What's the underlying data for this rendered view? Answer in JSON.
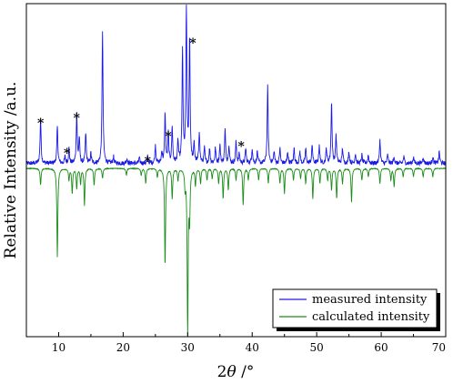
{
  "chart_data": {
    "type": "line",
    "xlabel_main": "2",
    "xlabel_var": "θ",
    "xlabel_unit": " /°",
    "ylabel": "Relative Intensity /a.u.",
    "xlim": [
      5,
      70
    ],
    "xticks": [
      10,
      20,
      30,
      40,
      50,
      60,
      70
    ],
    "xtick_labels": [
      "10",
      "20",
      "30",
      "40",
      "50",
      "60",
      "70"
    ],
    "ylim": [
      -100,
      100
    ],
    "legend_position": "bottom-right",
    "series": [
      {
        "name": "measured intensity",
        "color": "#1a1ae6",
        "baseline": 3,
        "peaks": [
          [
            7.2,
            27
          ],
          [
            9.8,
            22
          ],
          [
            11.0,
            4
          ],
          [
            11.6,
            9
          ],
          [
            12.8,
            30
          ],
          [
            13.2,
            15
          ],
          [
            14.2,
            18
          ],
          [
            15.0,
            6
          ],
          [
            16.8,
            80
          ],
          [
            18.5,
            4
          ],
          [
            20.6,
            3
          ],
          [
            22.5,
            3
          ],
          [
            23.8,
            4
          ],
          [
            25.0,
            11
          ],
          [
            26.0,
            7
          ],
          [
            26.5,
            30
          ],
          [
            27.0,
            18
          ],
          [
            27.6,
            22
          ],
          [
            28.5,
            13
          ],
          [
            29.2,
            67
          ],
          [
            29.8,
            95
          ],
          [
            30.3,
            75
          ],
          [
            31.0,
            11
          ],
          [
            31.8,
            19
          ],
          [
            32.6,
            9
          ],
          [
            33.4,
            9
          ],
          [
            34.3,
            9
          ],
          [
            35.0,
            11
          ],
          [
            35.8,
            20
          ],
          [
            36.4,
            11
          ],
          [
            37.5,
            13
          ],
          [
            38.0,
            6
          ],
          [
            39.0,
            9
          ],
          [
            40.0,
            9
          ],
          [
            40.8,
            7
          ],
          [
            42.4,
            46
          ],
          [
            43.4,
            7
          ],
          [
            44.3,
            9
          ],
          [
            45.5,
            7
          ],
          [
            46.5,
            9
          ],
          [
            47.4,
            7
          ],
          [
            48.3,
            9
          ],
          [
            49.3,
            11
          ],
          [
            50.4,
            11
          ],
          [
            51.5,
            9
          ],
          [
            52.3,
            37
          ],
          [
            53.0,
            17
          ],
          [
            54.0,
            9
          ],
          [
            55.0,
            7
          ],
          [
            56.0,
            6
          ],
          [
            57.0,
            5
          ],
          [
            58.0,
            5
          ],
          [
            59.8,
            14
          ],
          [
            61.0,
            5
          ],
          [
            62.0,
            4
          ],
          [
            63.5,
            4
          ],
          [
            65.0,
            4
          ],
          [
            66.5,
            4
          ],
          [
            68.0,
            4
          ],
          [
            69.0,
            7
          ]
        ]
      },
      {
        "name": "calculated intensity",
        "color": "#1a8c1a",
        "baseline": 0,
        "peaks": [
          [
            7.2,
            -10
          ],
          [
            9.8,
            -53
          ],
          [
            11.6,
            -7
          ],
          [
            12.1,
            -15
          ],
          [
            12.8,
            -12
          ],
          [
            13.4,
            -9
          ],
          [
            14.0,
            -22
          ],
          [
            15.5,
            -10
          ],
          [
            16.8,
            -6
          ],
          [
            20.5,
            -4
          ],
          [
            22.8,
            -4
          ],
          [
            23.5,
            -9
          ],
          [
            25.3,
            -5
          ],
          [
            26.5,
            -59
          ],
          [
            27.6,
            -18
          ],
          [
            28.5,
            -7
          ],
          [
            29.6,
            -10
          ],
          [
            30.0,
            -100
          ],
          [
            30.3,
            -28
          ],
          [
            31.2,
            -10
          ],
          [
            32.0,
            -9
          ],
          [
            33.0,
            -7
          ],
          [
            33.8,
            -6
          ],
          [
            34.8,
            -9
          ],
          [
            35.5,
            -18
          ],
          [
            36.3,
            -13
          ],
          [
            37.5,
            -7
          ],
          [
            38.6,
            -22
          ],
          [
            39.4,
            -7
          ],
          [
            41.0,
            -7
          ],
          [
            42.5,
            -9
          ],
          [
            44.3,
            -9
          ],
          [
            45.0,
            -15
          ],
          [
            46.4,
            -7
          ],
          [
            47.5,
            -6
          ],
          [
            48.3,
            -9
          ],
          [
            49.4,
            -18
          ],
          [
            50.5,
            -9
          ],
          [
            51.7,
            -7
          ],
          [
            52.3,
            -13
          ],
          [
            53.1,
            -18
          ],
          [
            54.0,
            -9
          ],
          [
            55.4,
            -20
          ],
          [
            57.0,
            -7
          ],
          [
            58.0,
            -5
          ],
          [
            59.8,
            -9
          ],
          [
            61.5,
            -7
          ],
          [
            62.0,
            -11
          ],
          [
            63.4,
            -5
          ],
          [
            65.0,
            -5
          ],
          [
            66.5,
            -5
          ],
          [
            68.0,
            -5
          ]
        ]
      }
    ],
    "annotations": [
      {
        "text": "*",
        "x": 7.2,
        "y": 29
      },
      {
        "text": "*",
        "x": 11.3,
        "y": 11
      },
      {
        "text": "*",
        "x": 12.8,
        "y": 32
      },
      {
        "text": "*",
        "x": 23.8,
        "y": 6
      },
      {
        "text": "*",
        "x": 27.0,
        "y": 21
      },
      {
        "text": "*",
        "x": 30.8,
        "y": 77
      },
      {
        "text": "*",
        "x": 38.3,
        "y": 15
      }
    ]
  }
}
